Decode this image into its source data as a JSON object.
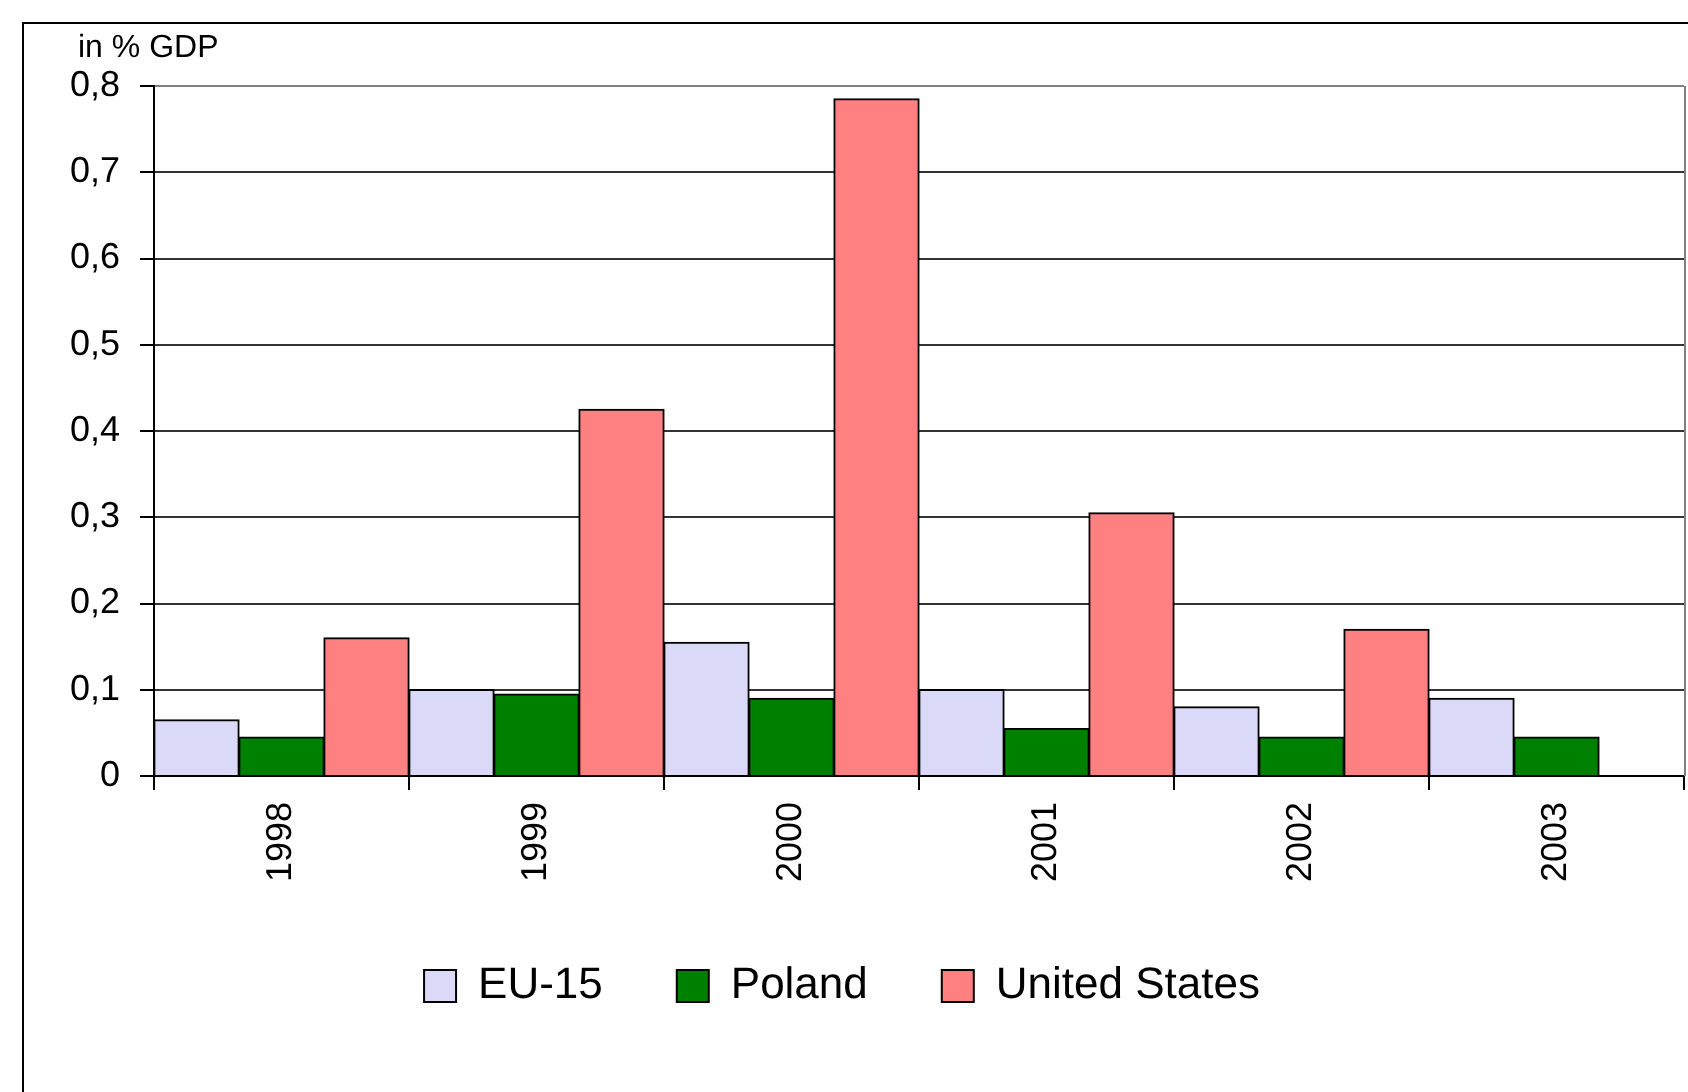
{
  "chart_data": {
    "type": "bar",
    "ylabel": "in % GDP",
    "categories": [
      "1998",
      "1999",
      "2000",
      "2001",
      "2002",
      "2003"
    ],
    "series": [
      {
        "name": "EU-15",
        "color": "#dadaf8",
        "values": [
          0.065,
          0.1,
          0.155,
          0.1,
          0.08,
          0.09
        ]
      },
      {
        "name": "Poland",
        "color": "#008000",
        "values": [
          0.045,
          0.095,
          0.09,
          0.055,
          0.045,
          0.045
        ]
      },
      {
        "name": "United States",
        "color": "#ff8080",
        "values": [
          0.16,
          0.425,
          0.785,
          0.305,
          0.17,
          null
        ]
      }
    ],
    "ylim": [
      0,
      0.8
    ],
    "yticks": [
      0,
      {
        "value": 0.1,
        "label": "0,1"
      },
      {
        "value": 0.2,
        "label": "0,2"
      },
      {
        "value": 0.3,
        "label": "0,3"
      },
      {
        "value": 0.4,
        "label": "0,4"
      },
      {
        "value": 0.5,
        "label": "0,5"
      },
      {
        "value": 0.6,
        "label": "0,6"
      },
      {
        "value": 0.7,
        "label": "0,7"
      },
      {
        "value": 0.8,
        "label": "0,8"
      }
    ],
    "grid": "y",
    "legend": "bottom"
  }
}
